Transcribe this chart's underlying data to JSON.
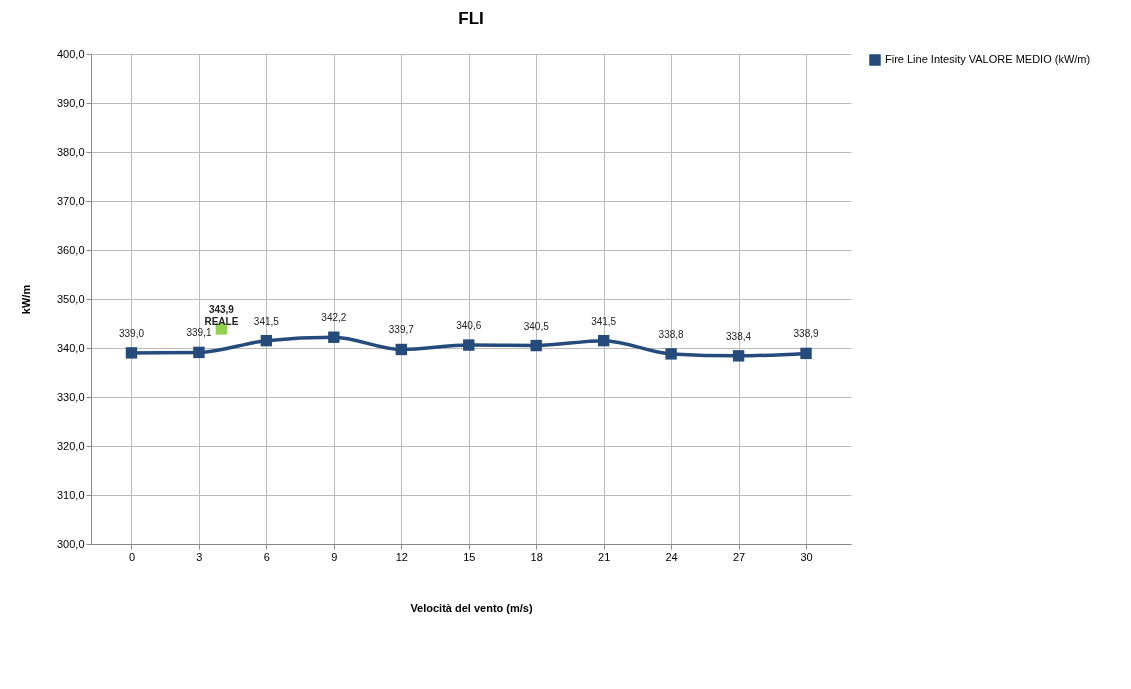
{
  "chart_data": {
    "type": "line",
    "title": "FLI",
    "xlabel": "Velocità del vento (m/s)",
    "ylabel": "kW/m",
    "series": [
      {
        "name": "Fire Line Intesity VALORE MEDIO (kW/m)",
        "color": "#254a7c",
        "x": [
          0,
          3,
          6,
          9,
          12,
          15,
          18,
          21,
          24,
          27,
          30
        ],
        "values": [
          339.0,
          339.1,
          341.5,
          342.2,
          339.7,
          340.6,
          340.5,
          341.5,
          338.8,
          338.4,
          338.9
        ],
        "value_labels": [
          "339,0",
          "339,1",
          "341,5",
          "342,2",
          "339,7",
          "340,6",
          "340,5",
          "341,5",
          "338,8",
          "338,4",
          "338,9"
        ]
      },
      {
        "type": "scatter",
        "color": "#92d050",
        "x": [
          4
        ],
        "values": [
          343.9
        ],
        "value_labels": [
          "343,9 REALE"
        ]
      }
    ],
    "xlim": [
      -1.8,
      32
    ],
    "xticks": [
      0,
      3,
      6,
      9,
      12,
      15,
      18,
      21,
      24,
      27,
      30
    ],
    "ylim": [
      300,
      400
    ],
    "yticks": [
      {
        "value": 300,
        "label": "300,0"
      },
      {
        "value": 310,
        "label": "310,0"
      },
      {
        "value": 320,
        "label": "320,0"
      },
      {
        "value": 330,
        "label": "330,0"
      },
      {
        "value": 340,
        "label": "340,0"
      },
      {
        "value": 350,
        "label": "350,0"
      },
      {
        "value": 360,
        "label": "360,0"
      },
      {
        "value": 370,
        "label": "370,0"
      },
      {
        "value": 380,
        "label": "380,0"
      },
      {
        "value": 390,
        "label": "390,0"
      },
      {
        "value": 400,
        "label": "400,0"
      }
    ],
    "grid": true,
    "legend": "right",
    "marker": "square",
    "line_style": "solid"
  }
}
